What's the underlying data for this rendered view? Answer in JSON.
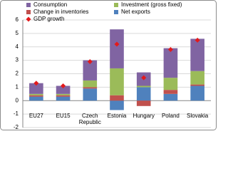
{
  "chart_data": {
    "type": "bar",
    "stacked": true,
    "categories": [
      "EU27",
      "EU15",
      "Czech Republic",
      "Estonia",
      "Hungary",
      "Poland",
      "Slovakia"
    ],
    "series": [
      {
        "name": "Consumption",
        "color": "#8064a2",
        "values": [
          0.8,
          0.6,
          1.5,
          2.9,
          1.0,
          2.2,
          2.4
        ]
      },
      {
        "name": "Investment (gross fixed)",
        "color": "#9bbb59",
        "values": [
          0.1,
          0.1,
          0.5,
          2.0,
          0.1,
          0.9,
          1.0
        ]
      },
      {
        "name": "Change in inventories",
        "color": "#c0504d",
        "values": [
          0.1,
          0.1,
          0.1,
          0.4,
          -0.4,
          0.3,
          0.1
        ]
      },
      {
        "name": "Net exports",
        "color": "#4f81bd",
        "values": [
          0.3,
          0.3,
          0.9,
          -0.7,
          1.0,
          0.5,
          1.1
        ]
      }
    ],
    "line_series": {
      "name": "GDP growth",
      "color": "#e31a1c",
      "values": [
        1.3,
        1.1,
        2.9,
        4.2,
        1.7,
        3.8,
        4.5
      ]
    },
    "ylim": [
      -2,
      6
    ],
    "yticks": [
      -2,
      -1,
      0,
      1,
      2,
      3,
      4,
      5,
      6
    ],
    "grid": true
  }
}
